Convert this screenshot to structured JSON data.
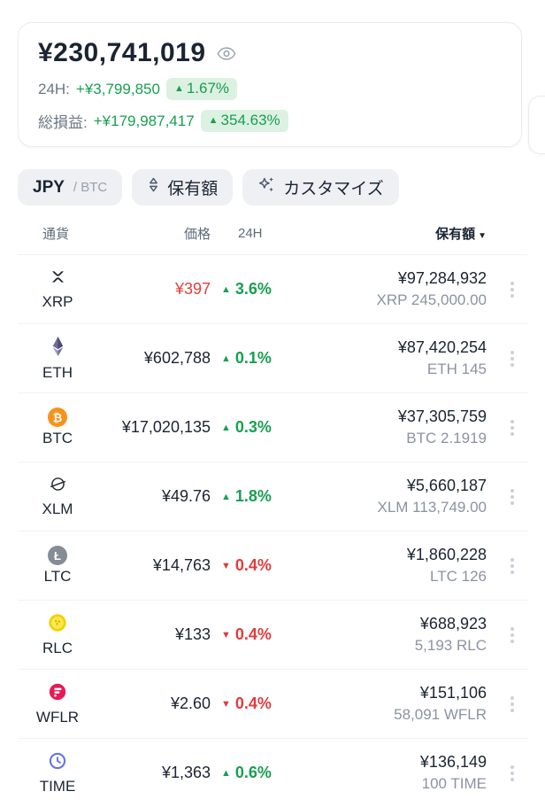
{
  "summary": {
    "total_value": "¥230,741,019",
    "change_24h": {
      "label": "24H:",
      "value": "+¥3,799,850",
      "arrow": "▲",
      "pct": "1.67%"
    },
    "total_pnl": {
      "label": "総損益:",
      "value": "+¥179,987,417",
      "arrow": "▲",
      "pct": "354.63%"
    }
  },
  "filters": {
    "currency_toggle": {
      "primary": "JPY",
      "separator": "/",
      "secondary": "BTC"
    },
    "sort_button": "保有額",
    "customize_button": "カスタマイズ"
  },
  "table": {
    "headers": {
      "coin": "通貨",
      "price": "価格",
      "change": "24H",
      "holdings": "保有額",
      "sort_arrow": "▼"
    },
    "rows": [
      {
        "symbol": "XRP",
        "icon": "xrp",
        "price": "¥397",
        "price_color": "#e0403a",
        "arrow": "▲",
        "change": "3.6%",
        "direction": "up",
        "holdings_fiat": "¥97,284,932",
        "holdings_qty": "XRP 245,000.00"
      },
      {
        "symbol": "ETH",
        "icon": "eth",
        "price": "¥602,788",
        "price_color": "#1a2433",
        "arrow": "▲",
        "change": "0.1%",
        "direction": "up",
        "holdings_fiat": "¥87,420,254",
        "holdings_qty": "ETH 145"
      },
      {
        "symbol": "BTC",
        "icon": "btc",
        "price": "¥17,020,135",
        "price_color": "#1a2433",
        "arrow": "▲",
        "change": "0.3%",
        "direction": "up",
        "holdings_fiat": "¥37,305,759",
        "holdings_qty": "BTC 2.1919"
      },
      {
        "symbol": "XLM",
        "icon": "xlm",
        "price": "¥49.76",
        "price_color": "#1a2433",
        "arrow": "▲",
        "change": "1.8%",
        "direction": "up",
        "holdings_fiat": "¥5,660,187",
        "holdings_qty": "XLM 113,749.00"
      },
      {
        "symbol": "LTC",
        "icon": "ltc",
        "price": "¥14,763",
        "price_color": "#1a2433",
        "arrow": "▼",
        "change": "0.4%",
        "direction": "down",
        "holdings_fiat": "¥1,860,228",
        "holdings_qty": "LTC 126"
      },
      {
        "symbol": "RLC",
        "icon": "rlc",
        "price": "¥133",
        "price_color": "#1a2433",
        "arrow": "▼",
        "change": "0.4%",
        "direction": "down",
        "holdings_fiat": "¥688,923",
        "holdings_qty": "5,193 RLC"
      },
      {
        "symbol": "WFLR",
        "icon": "wflr",
        "price": "¥2.60",
        "price_color": "#1a2433",
        "arrow": "▼",
        "change": "0.4%",
        "direction": "down",
        "holdings_fiat": "¥151,106",
        "holdings_qty": "58,091 WFLR"
      },
      {
        "symbol": "TIME",
        "icon": "time",
        "price": "¥1,363",
        "price_color": "#1a2433",
        "arrow": "▲",
        "change": "0.6%",
        "direction": "up",
        "holdings_fiat": "¥136,149",
        "holdings_qty": "100 TIME"
      }
    ]
  },
  "colors": {
    "positive": "#17a04f",
    "positive_badge_bg": "#ddf1e3",
    "negative": "#e03c3c",
    "price_alert_red": "#e0403a",
    "text_dark": "#1a2433",
    "text_gray": "#6b7684",
    "chip_bg": "#eef0f4"
  }
}
